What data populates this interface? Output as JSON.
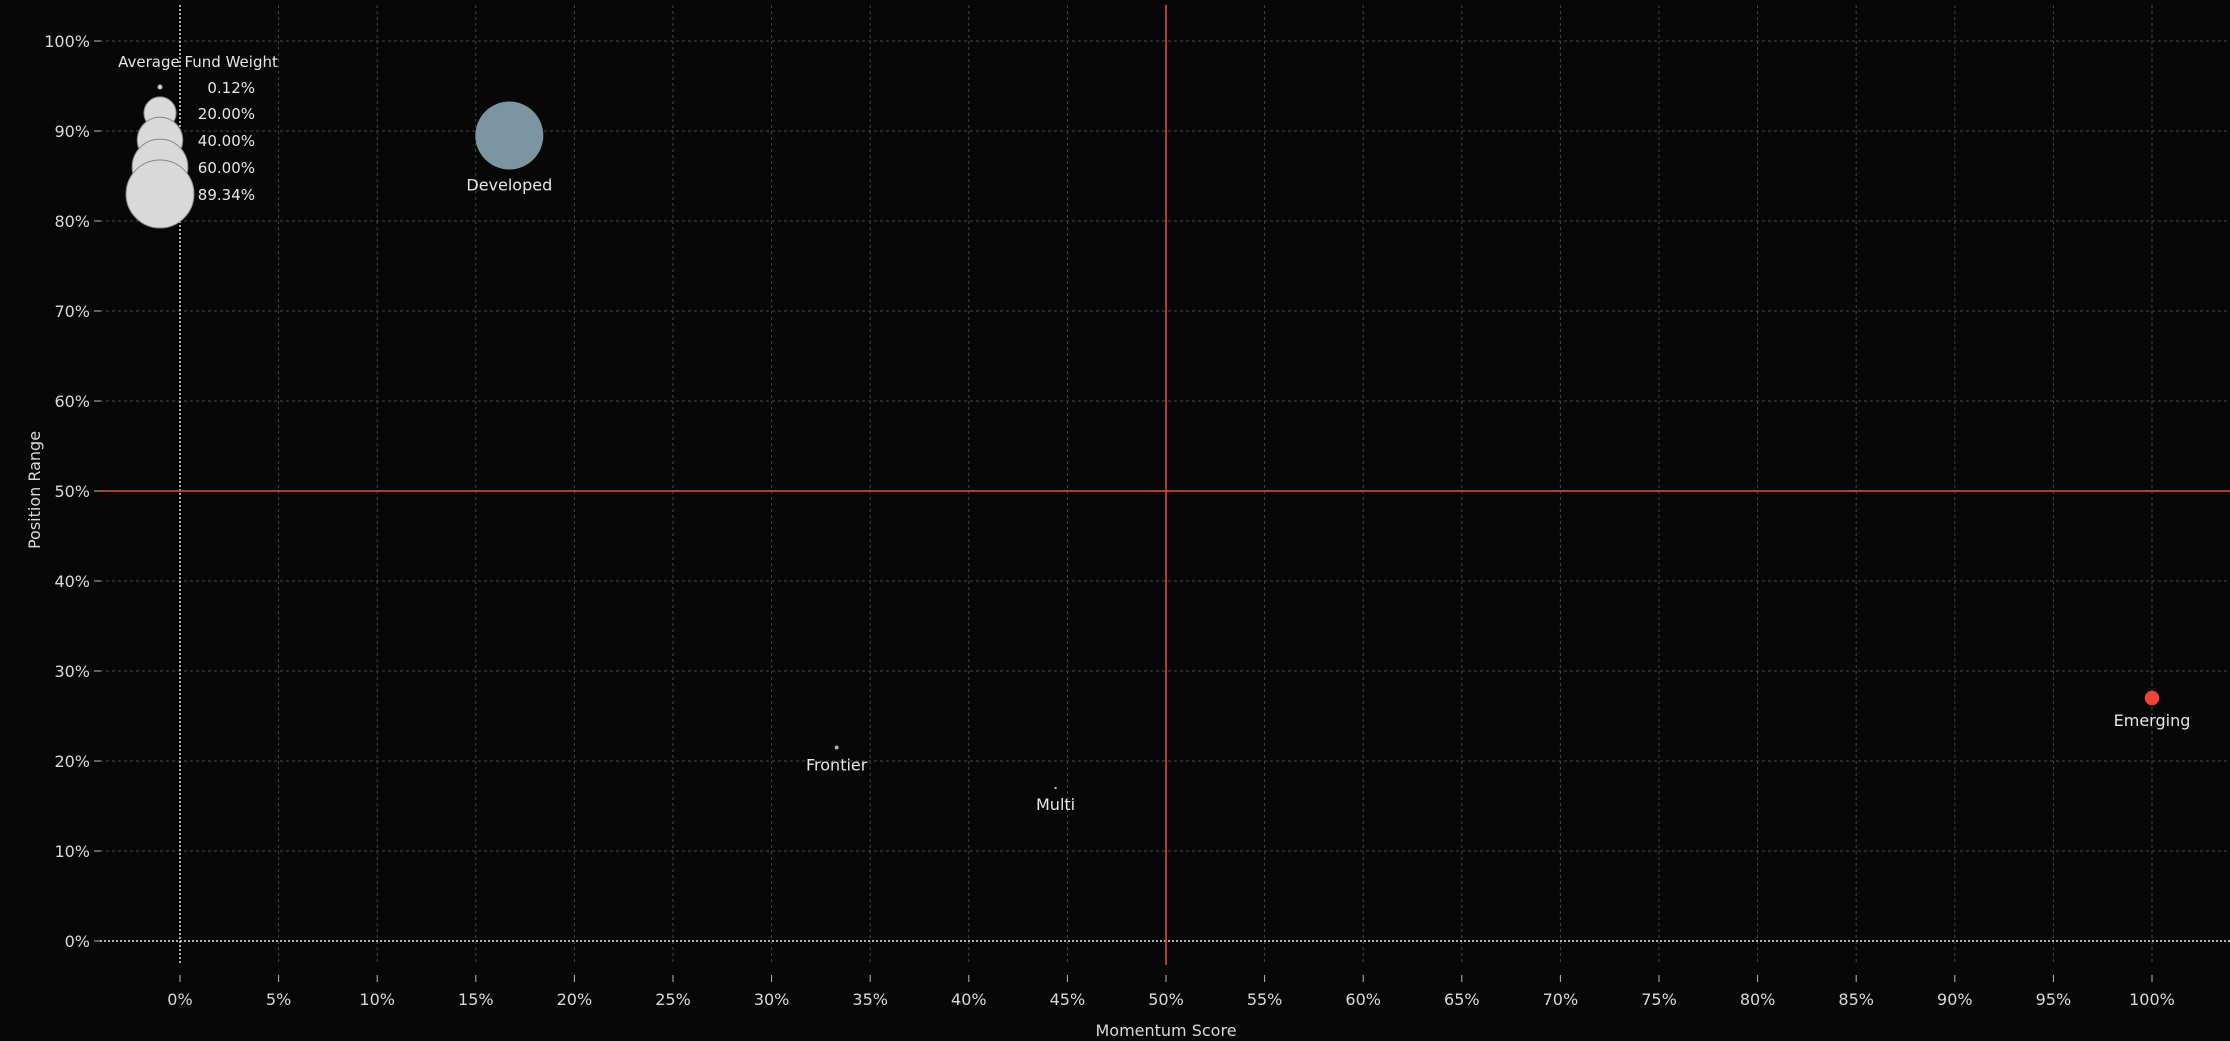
{
  "chart_data": {
    "type": "scatter",
    "title": "",
    "xlabel": "Momentum Score",
    "ylabel": "Position Range",
    "xlim": [
      -4,
      104
    ],
    "ylim": [
      -7,
      104
    ],
    "x_ticks": [
      "0%",
      "5%",
      "10%",
      "15%",
      "20%",
      "25%",
      "30%",
      "35%",
      "40%",
      "45%",
      "50%",
      "55%",
      "60%",
      "65%",
      "70%",
      "75%",
      "80%",
      "85%",
      "90%",
      "95%",
      "100%"
    ],
    "x_tick_values": [
      0,
      5,
      10,
      15,
      20,
      25,
      30,
      35,
      40,
      45,
      50,
      55,
      60,
      65,
      70,
      75,
      80,
      85,
      90,
      95,
      100
    ],
    "y_ticks": [
      "0%",
      "10%",
      "20%",
      "30%",
      "40%",
      "50%",
      "60%",
      "70%",
      "80%",
      "90%",
      "100%"
    ],
    "y_tick_values": [
      0,
      10,
      20,
      30,
      40,
      50,
      60,
      70,
      80,
      90,
      100
    ],
    "grid": true,
    "reference_lines": {
      "x": 50,
      "y": 50,
      "color": "#e84a4a"
    },
    "points": [
      {
        "label": "Developed",
        "x": 16.7,
        "y": 89.5,
        "weight": 89.34,
        "color": "#7c95a2"
      },
      {
        "label": "Frontier",
        "x": 33.3,
        "y": 21.5,
        "weight": 0.3,
        "color": "#9fb3bd"
      },
      {
        "label": "Multi",
        "x": 44.4,
        "y": 17.0,
        "weight": 0.12,
        "color": "#9fb3bd"
      },
      {
        "label": "Emerging",
        "x": 100,
        "y": 27.0,
        "weight": 4.0,
        "color": "#f2443b"
      }
    ],
    "legend": {
      "title": "Average Fund Weight",
      "position": "top-left",
      "entries": [
        {
          "label": "0.12%",
          "weight": 0.12
        },
        {
          "label": "20.00%",
          "weight": 20.0
        },
        {
          "label": "40.00%",
          "weight": 40.0
        },
        {
          "label": "60.00%",
          "weight": 60.0
        },
        {
          "label": "89.34%",
          "weight": 89.34
        }
      ]
    }
  }
}
